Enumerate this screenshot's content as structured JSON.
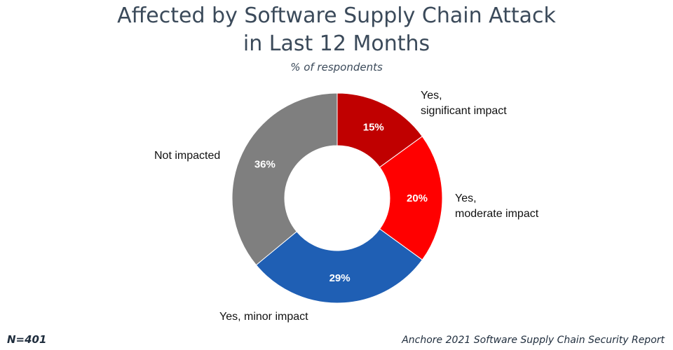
{
  "title": {
    "line1": "Affected by Software Supply Chain Attack",
    "line2": "in Last 12 Months"
  },
  "subtitle": "% of respondents",
  "footer": {
    "n": "N=401",
    "source": "Anchore 2021 Software Supply Chain Security Report"
  },
  "chart_data": {
    "type": "pie",
    "variant": "donut",
    "title": "Affected by Software Supply Chain Attack in Last 12 Months",
    "subtitle": "% of respondents",
    "unit": "%",
    "slices": [
      {
        "label_lines": [
          "Yes,",
          "significant impact"
        ],
        "value": 15,
        "display": "15%",
        "color": "#c00000"
      },
      {
        "label_lines": [
          "Yes,",
          "moderate impact"
        ],
        "value": 20,
        "display": "20%",
        "color": "#ff0000"
      },
      {
        "label_lines": [
          "Yes, minor impact"
        ],
        "value": 29,
        "display": "29%",
        "color": "#1f5fb4"
      },
      {
        "label_lines": [
          "Not impacted"
        ],
        "value": 36,
        "display": "36%",
        "color": "#7f7f7f"
      }
    ]
  }
}
